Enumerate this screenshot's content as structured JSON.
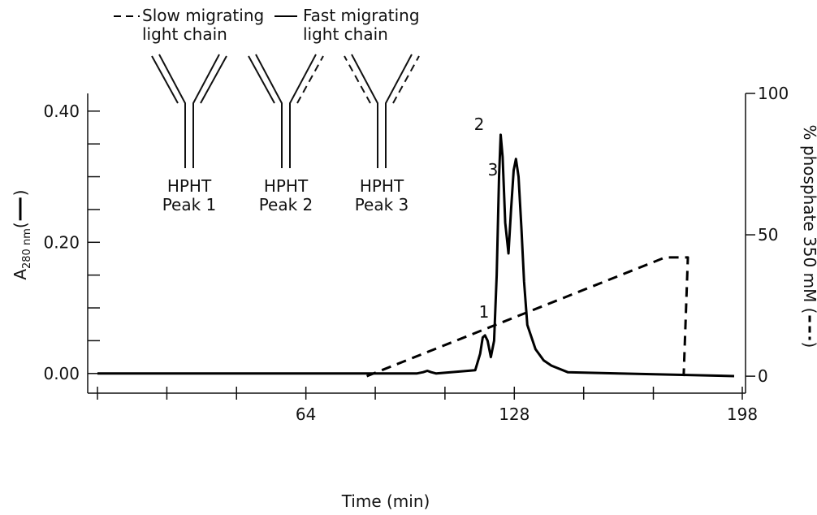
{
  "chart_data": {
    "type": "line",
    "x_label": "Time (min)",
    "y_label_parts": [
      "A",
      "280 nm",
      "(",
      ")"
    ],
    "y2_label_parts": [
      "% phosphate 350 mM (",
      ")"
    ],
    "xlim": [
      -3,
      199
    ],
    "xticks": [
      64,
      128,
      198
    ],
    "xminorticks": [
      0,
      21.3,
      42.7,
      85.3,
      106.7,
      149.3,
      170.7
    ],
    "ylim": [
      -0.03,
      0.427
    ],
    "yticks": [
      {
        "value": 0,
        "label": "0.00"
      },
      {
        "value": 0.2,
        "label": "0.20"
      },
      {
        "value": 0.4,
        "label": "0.40"
      }
    ],
    "yminorticks": [
      0.05,
      0.1,
      0.15,
      0.25,
      0.3,
      0.35
    ],
    "y2lim": [
      -6,
      100
    ],
    "y2ticks": [
      0,
      50,
      100
    ],
    "series": [
      {
        "name": "Fast migrating light chain",
        "color": "#000000",
        "dash": "solid",
        "x": [
          0,
          98,
          100,
          101.3,
          102.5,
          104,
          116,
          117.5,
          118.3,
          119.0,
          119.8,
          120.8,
          121.8,
          122.6,
          123.3,
          123.8,
          124.4,
          125.2,
          126.2,
          127.0,
          127.8,
          128.5,
          129.3,
          130.2,
          131.0,
          132.0,
          134.5,
          137,
          139.4,
          144.4,
          160,
          195.5
        ],
        "values": [
          0,
          0,
          0.002,
          0.004,
          0.002,
          0,
          0.005,
          0.03,
          0.055,
          0.058,
          0.05,
          0.025,
          0.05,
          0.15,
          0.3,
          0.364,
          0.33,
          0.23,
          0.183,
          0.25,
          0.31,
          0.327,
          0.3,
          0.22,
          0.14,
          0.074,
          0.037,
          0.02,
          0.012,
          0.002,
          0,
          -0.004
        ]
      },
      {
        "name": "Slow migrating light chain",
        "color": "#000000",
        "dash": "dashed",
        "axis": "y2",
        "x": [
          82.7,
          174.3,
          181.3,
          180.0
        ],
        "values": [
          0,
          42,
          42,
          0
        ]
      }
    ],
    "annotations": [
      "1",
      "2",
      "3"
    ],
    "diagram_labels": [
      "HPHT Peak 1",
      "HPHT Peak 2",
      "HPHT Peak 3"
    ]
  }
}
